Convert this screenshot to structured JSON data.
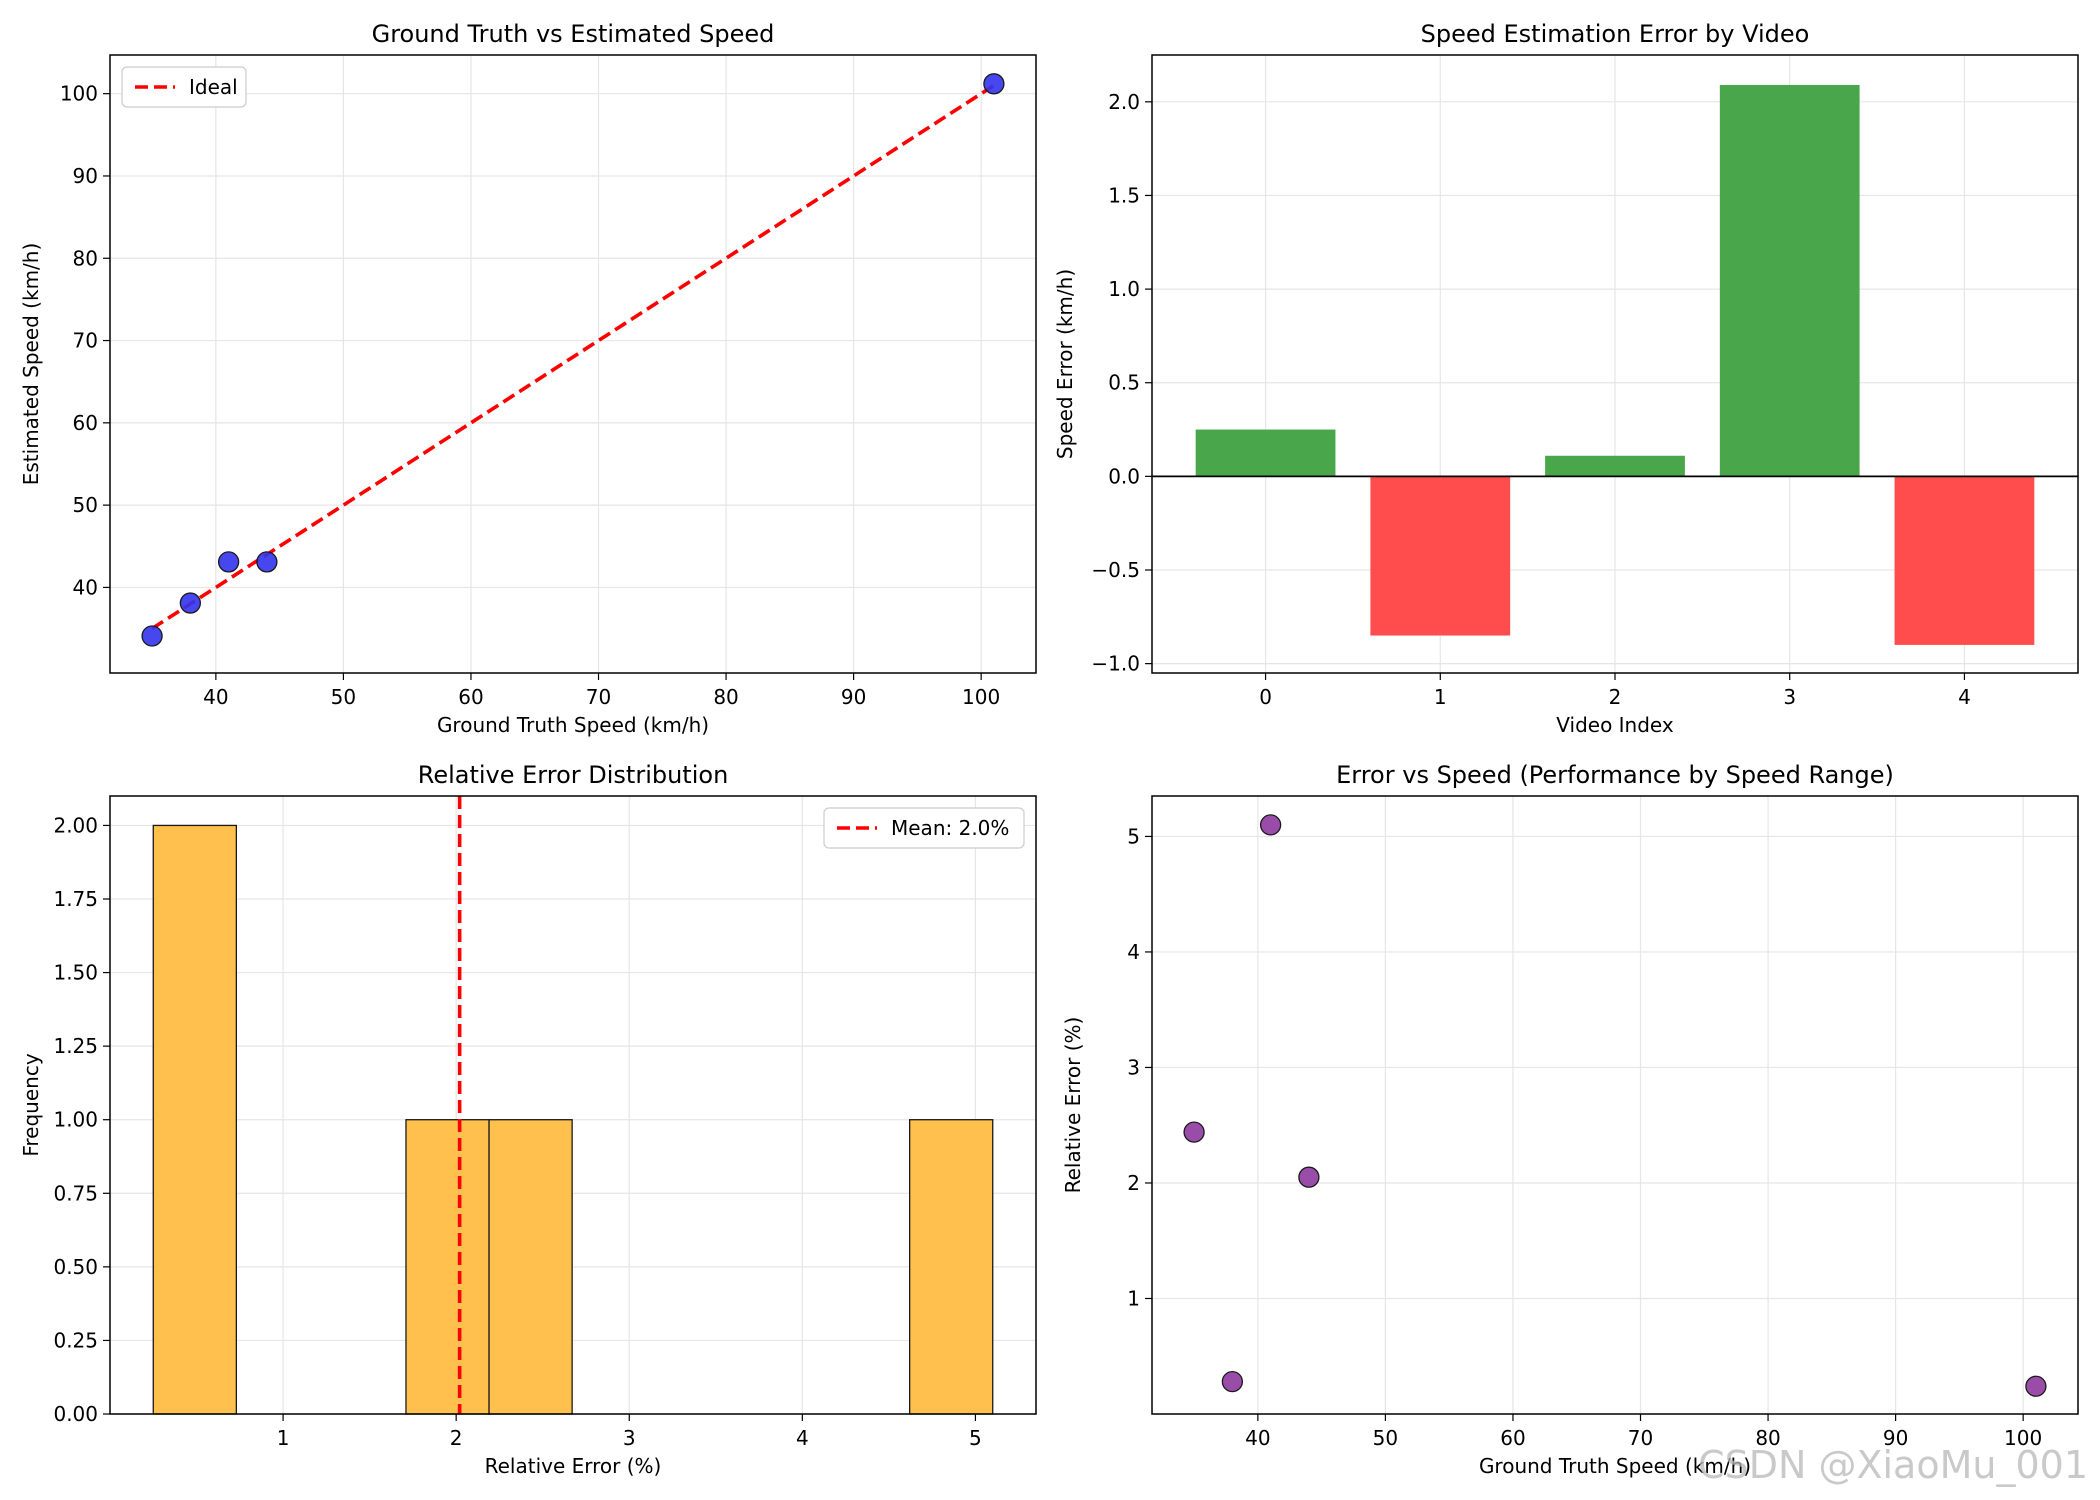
{
  "chart_data": [
    {
      "type": "scatter",
      "title": "Ground Truth vs Estimated Speed",
      "xlabel": "Ground Truth Speed (km/h)",
      "ylabel": "Estimated Speed (km/h)",
      "xlim": [
        31.7,
        104.3
      ],
      "ylim": [
        29.6,
        104.7
      ],
      "xticks": [
        40,
        50,
        60,
        70,
        80,
        90,
        100
      ],
      "yticks": [
        40,
        50,
        60,
        70,
        80,
        90,
        100
      ],
      "grid": true,
      "legend": {
        "position": "top-left",
        "entries": [
          "Ideal"
        ]
      },
      "ideal_line": {
        "label": "Ideal",
        "x": [
          35,
          101
        ],
        "y": [
          35,
          101
        ],
        "color": "#ff0000"
      },
      "x": [
        35,
        38,
        41,
        44,
        101
      ],
      "y": [
        34.1,
        38.1,
        43.1,
        43.1,
        101.2
      ],
      "point_color": "#3333ee"
    },
    {
      "type": "bar",
      "title": "Speed Estimation Error by Video",
      "xlabel": "Video Index",
      "ylabel": "Speed Error (km/h)",
      "categories": [
        "0",
        "1",
        "2",
        "3",
        "4"
      ],
      "values": [
        0.25,
        -0.85,
        0.11,
        2.09,
        -0.9
      ],
      "ylim": [
        -1.05,
        2.25
      ],
      "yticks": [
        -1.0,
        -0.5,
        0.0,
        0.5,
        1.0,
        1.5,
        2.0
      ],
      "ytick_labels": [
        "−1.0",
        "−0.5",
        "0.0",
        "0.5",
        "1.0",
        "1.5",
        "2.0"
      ],
      "grid": true,
      "positive_color": "#4aa64a",
      "negative_color": "#ff4d4d"
    },
    {
      "type": "bar",
      "subtype": "histogram",
      "title": "Relative Error Distribution",
      "xlabel": "Relative Error (%)",
      "ylabel": "Frequency",
      "bins": [
        {
          "from": 0.25,
          "to": 0.73,
          "count": 2
        },
        {
          "from": 1.71,
          "to": 2.19,
          "count": 1
        },
        {
          "from": 2.19,
          "to": 2.67,
          "count": 1
        },
        {
          "from": 4.62,
          "to": 5.1,
          "count": 1
        }
      ],
      "xlim": [
        0.0,
        5.35
      ],
      "ylim": [
        0,
        2.1
      ],
      "xticks": [
        1,
        2,
        3,
        4,
        5
      ],
      "yticks": [
        0.0,
        0.25,
        0.5,
        0.75,
        1.0,
        1.25,
        1.5,
        1.75,
        2.0
      ],
      "ytick_labels": [
        "0.00",
        "0.25",
        "0.50",
        "0.75",
        "1.00",
        "1.25",
        "1.50",
        "1.75",
        "2.00"
      ],
      "grid": true,
      "mean_line": {
        "label": "Mean: 2.0%",
        "x": 2.02,
        "color": "#ff0000"
      },
      "legend": {
        "position": "top-right",
        "entries": [
          "Mean: 2.0%"
        ]
      },
      "bar_color": "#ffc04d"
    },
    {
      "type": "scatter",
      "title": "Error vs Speed (Performance by Speed Range)",
      "xlabel": "Ground Truth Speed (km/h)",
      "ylabel": "Relative Error (%)",
      "x": [
        35,
        38,
        41,
        44,
        101
      ],
      "y": [
        2.44,
        0.28,
        5.1,
        2.05,
        0.24
      ],
      "xlim": [
        31.7,
        104.3
      ],
      "ylim": [
        0.0,
        5.35
      ],
      "xticks": [
        40,
        50,
        60,
        70,
        80,
        90,
        100
      ],
      "yticks": [
        1,
        2,
        3,
        4,
        5
      ],
      "grid": true,
      "point_color": "#8e3a9e"
    }
  ],
  "watermark": "CSDN @XiaoMu_001"
}
